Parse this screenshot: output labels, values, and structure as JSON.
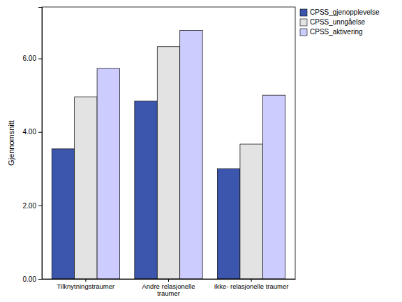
{
  "chart_data": {
    "type": "bar",
    "y_label": "Gjennomsnitt",
    "categories": [
      "Tilknytningstraumer",
      "Andre relasjonelle traumer",
      "Ikke- relasjonelle traumer"
    ],
    "series": [
      {
        "name": "CPSS_gjenopplevelse",
        "color": "#3d56ad",
        "values": [
          3.54,
          4.84,
          3.0
        ]
      },
      {
        "name": "CPSS_unngåelse",
        "color": "#e3e3e3",
        "values": [
          4.95,
          6.32,
          3.67
        ]
      },
      {
        "name": "CPSS_aktivering",
        "color": "#ccccff",
        "values": [
          5.73,
          6.76,
          5.0
        ]
      }
    ],
    "ylim": [
      0,
      7.4
    ],
    "yticks": [
      {
        "value": 0,
        "label": "0.00"
      },
      {
        "value": 2,
        "label": "2.00"
      },
      {
        "value": 4,
        "label": "4.00"
      },
      {
        "value": 6,
        "label": "6.00"
      }
    ],
    "grid": false,
    "legend": "top-right"
  }
}
